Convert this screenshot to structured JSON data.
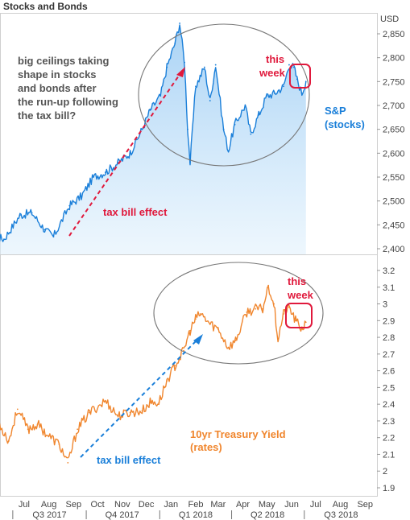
{
  "page": {
    "title": "Stocks and Bonds"
  },
  "chart_data": [
    {
      "type": "line",
      "unit_label": "USD",
      "ylim": [
        2390,
        2890
      ],
      "yticks": [
        "2,400",
        "2,450",
        "2,500",
        "2,550",
        "2,600",
        "2,650",
        "2,700",
        "2,750",
        "2,800",
        "2,850"
      ],
      "ytick_values": [
        2400,
        2450,
        2500,
        2550,
        2600,
        2650,
        2700,
        2750,
        2800,
        2850
      ],
      "series": [
        {
          "name": "S&P (stocks)",
          "color": "#1a7fd9",
          "x": [
            "2017-06-01",
            "2017-06-20",
            "2017-07-10",
            "2017-07-25",
            "2017-08-10",
            "2017-08-21",
            "2017-09-10",
            "2017-09-25",
            "2017-10-10",
            "2017-10-25",
            "2017-11-10",
            "2017-11-25",
            "2017-12-10",
            "2017-12-20",
            "2018-01-02",
            "2018-01-10",
            "2018-01-20",
            "2018-01-26",
            "2018-02-01",
            "2018-02-05",
            "2018-02-08",
            "2018-02-15",
            "2018-02-26",
            "2018-03-05",
            "2018-03-12",
            "2018-03-22",
            "2018-03-28",
            "2018-04-05",
            "2018-04-18",
            "2018-04-25",
            "2018-05-05",
            "2018-05-15",
            "2018-05-25",
            "2018-06-05",
            "2018-06-12",
            "2018-06-18",
            "2018-06-22",
            "2018-06-28",
            "2018-07-03"
          ],
          "y": [
            2430,
            2420,
            2470,
            2475,
            2440,
            2425,
            2490,
            2510,
            2550,
            2560,
            2580,
            2600,
            2650,
            2690,
            2720,
            2780,
            2830,
            2872,
            2790,
            2650,
            2580,
            2740,
            2780,
            2710,
            2785,
            2650,
            2605,
            2660,
            2700,
            2640,
            2680,
            2720,
            2725,
            2740,
            2785,
            2780,
            2755,
            2725,
            2750
          ]
        }
      ],
      "annotations": {
        "commentary": [
          "big ceilings taking",
          "shape in stocks",
          "and bonds after",
          "the run-up following",
          "the tax bill?"
        ],
        "effect": "tax bill effect",
        "this_week": [
          "this",
          "week"
        ],
        "series_label": [
          "S&P",
          "(stocks)"
        ]
      },
      "colors": {
        "annotation_red": "#e0193c",
        "commentary": "#555555"
      }
    },
    {
      "type": "line",
      "ylim": [
        1.85,
        3.3
      ],
      "yticks": [
        "1.9",
        "2",
        "2.1",
        "2.2",
        "2.3",
        "2.4",
        "2.5",
        "2.6",
        "2.7",
        "2.8",
        "2.9",
        "3",
        "3.1",
        "3.2"
      ],
      "ytick_values": [
        1.9,
        2.0,
        2.1,
        2.2,
        2.3,
        2.4,
        2.5,
        2.6,
        2.7,
        2.8,
        2.9,
        3.0,
        3.1,
        3.2
      ],
      "series": [
        {
          "name": "10yr Treasury Yield (rates)",
          "color": "#f0862e",
          "x": [
            "2017-06-01",
            "2017-06-10",
            "2017-06-26",
            "2017-07-07",
            "2017-07-20",
            "2017-08-01",
            "2017-08-15",
            "2017-08-28",
            "2017-09-08",
            "2017-09-20",
            "2017-10-05",
            "2017-10-25",
            "2017-11-10",
            "2017-11-25",
            "2017-12-10",
            "2017-12-20",
            "2017-12-31",
            "2018-01-10",
            "2018-01-20",
            "2018-01-31",
            "2018-02-08",
            "2018-02-15",
            "2018-02-21",
            "2018-03-05",
            "2018-03-15",
            "2018-03-28",
            "2018-04-06",
            "2018-04-20",
            "2018-05-01",
            "2018-05-10",
            "2018-05-17",
            "2018-05-24",
            "2018-05-29",
            "2018-06-05",
            "2018-06-12",
            "2018-06-20",
            "2018-06-28",
            "2018-07-03"
          ],
          "y": [
            2.2,
            2.32,
            2.18,
            2.37,
            2.25,
            2.28,
            2.21,
            2.16,
            2.05,
            2.25,
            2.35,
            2.42,
            2.33,
            2.35,
            2.36,
            2.41,
            2.41,
            2.54,
            2.63,
            2.72,
            2.84,
            2.91,
            2.94,
            2.88,
            2.85,
            2.74,
            2.78,
            2.95,
            2.97,
            2.97,
            3.11,
            3.0,
            2.79,
            2.94,
            2.98,
            2.9,
            2.85,
            2.89
          ]
        }
      ],
      "annotations": {
        "effect": "tax bill effect",
        "this_week": [
          "this",
          "week"
        ],
        "series_label": [
          "10yr Treasury Yield",
          "(rates)"
        ]
      },
      "colors": {
        "annotation_red": "#e0193c",
        "effect_arrow": "#1a7fd9"
      }
    }
  ],
  "x_axis": {
    "range": [
      "2017-06-15",
      "2018-09-30"
    ],
    "months": [
      {
        "label": "Jul",
        "date": "2017-07-01"
      },
      {
        "label": "Aug",
        "date": "2017-08-01"
      },
      {
        "label": "Sep",
        "date": "2017-09-01"
      },
      {
        "label": "Oct",
        "date": "2017-10-01"
      },
      {
        "label": "Nov",
        "date": "2017-11-01"
      },
      {
        "label": "Dec",
        "date": "2017-12-01"
      },
      {
        "label": "Jan",
        "date": "2018-01-01"
      },
      {
        "label": "Feb",
        "date": "2018-02-01"
      },
      {
        "label": "Mar",
        "date": "2018-03-01"
      },
      {
        "label": "Apr",
        "date": "2018-04-01"
      },
      {
        "label": "May",
        "date": "2018-05-01"
      },
      {
        "label": "Jun",
        "date": "2018-06-01"
      },
      {
        "label": "Jul",
        "date": "2018-07-01"
      },
      {
        "label": "Aug",
        "date": "2018-08-01"
      },
      {
        "label": "Sep",
        "date": "2018-09-01"
      }
    ],
    "quarters": [
      {
        "label": "Q3 2017",
        "date": "2017-08-16"
      },
      {
        "label": "Q4 2017",
        "date": "2017-11-15"
      },
      {
        "label": "Q1 2018",
        "date": "2018-02-15"
      },
      {
        "label": "Q2 2018",
        "date": "2018-05-16"
      },
      {
        "label": "Q3 2018",
        "date": "2018-08-16"
      }
    ],
    "quarter_boundaries": [
      "2017-07-01",
      "2017-10-01",
      "2018-01-01",
      "2018-04-01",
      "2018-07-01"
    ]
  }
}
